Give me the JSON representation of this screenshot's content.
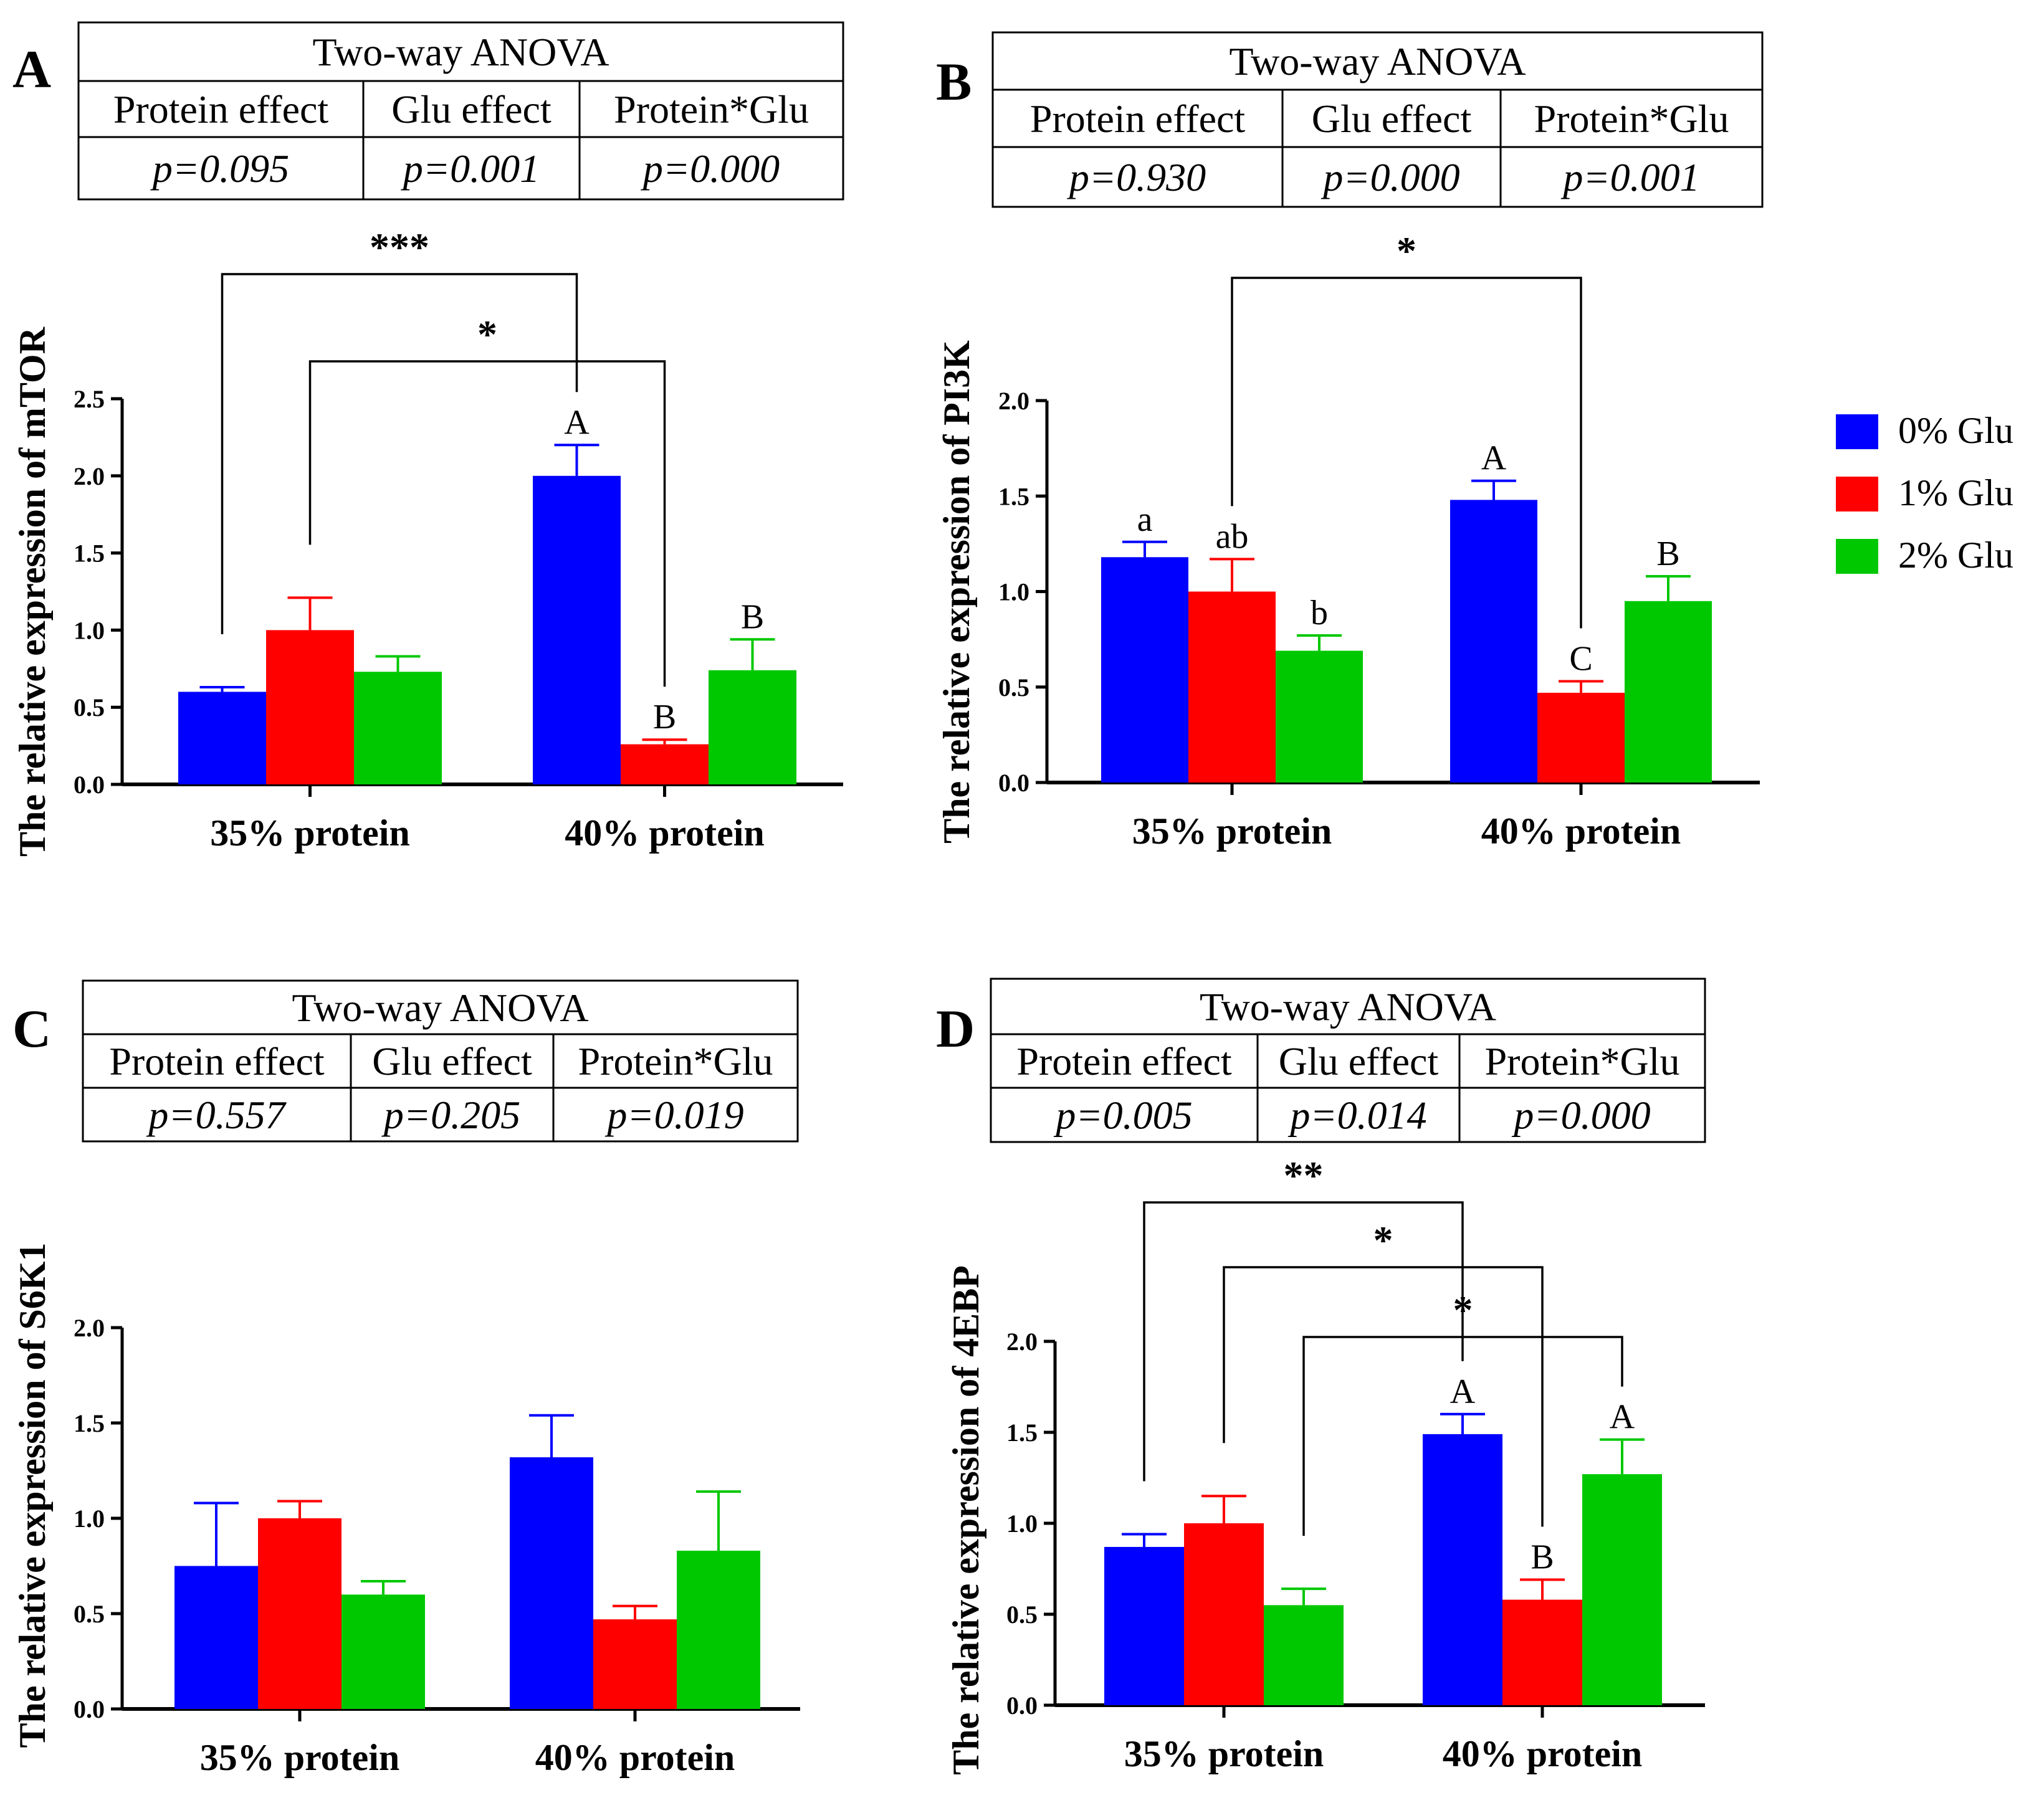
{
  "legend": {
    "entries": [
      "0% Glu",
      "1% Glu",
      "2% Glu"
    ]
  },
  "colors": {
    "series": [
      "#0000FF",
      "#FF0000",
      "#00C800"
    ],
    "axis": "#000000"
  },
  "panels": [
    {
      "letter": "A",
      "anova": {
        "title": "Two-way ANOVA",
        "headers": [
          "Protein effect",
          "Glu effect",
          "Protein*Glu"
        ],
        "values": [
          "p=0.095",
          "p=0.001",
          "p=0.000"
        ]
      },
      "chart_data": {
        "type": "bar",
        "ylabel": "The relative expression of mTOR",
        "categories": [
          "35% protein",
          "40% protein"
        ],
        "ylim": [
          0,
          2.5
        ],
        "yticks": [
          0.0,
          0.5,
          1.0,
          1.5,
          2.0,
          2.5
        ],
        "ytick_labels": [
          "0.0",
          "0.5",
          "1.0",
          "1.5",
          "2.0",
          "2.5"
        ],
        "series": [
          {
            "name": "0% Glu",
            "values": [
              0.6,
              2.0
            ],
            "errors": [
              0.03,
              0.2
            ],
            "labels": [
              "",
              "A"
            ]
          },
          {
            "name": "1% Glu",
            "values": [
              1.0,
              0.26
            ],
            "errors": [
              0.21,
              0.03
            ],
            "labels": [
              "",
              "B"
            ]
          },
          {
            "name": "2% Glu",
            "values": [
              0.73,
              0.74
            ],
            "errors": [
              0.1,
              0.2
            ],
            "labels": [
              "",
              "B"
            ]
          }
        ],
        "brackets": [
          {
            "from": [
              0,
              0
            ],
            "to": [
              1,
              0
            ],
            "label": "***",
            "level": 0
          },
          {
            "from": [
              0,
              1
            ],
            "to": [
              1,
              1
            ],
            "label": "*",
            "level": 1
          }
        ]
      }
    },
    {
      "letter": "B",
      "anova": {
        "title": "Two-way ANOVA",
        "headers": [
          "Protein effect",
          "Glu effect",
          "Protein*Glu"
        ],
        "values": [
          "p=0.930",
          "p=0.000",
          "p=0.001"
        ]
      },
      "chart_data": {
        "type": "bar",
        "ylabel": "The relative expression of PI3K",
        "categories": [
          "35% protein",
          "40% protein"
        ],
        "ylim": [
          0,
          2.0
        ],
        "yticks": [
          0.0,
          0.5,
          1.0,
          1.5,
          2.0
        ],
        "ytick_labels": [
          "0.0",
          "0.5",
          "1.0",
          "1.5",
          "2.0"
        ],
        "series": [
          {
            "name": "0% Glu",
            "values": [
              1.18,
              1.48
            ],
            "errors": [
              0.08,
              0.1
            ],
            "labels": [
              "a",
              "A"
            ]
          },
          {
            "name": "1% Glu",
            "values": [
              1.0,
              0.47
            ],
            "errors": [
              0.17,
              0.06
            ],
            "labels": [
              "ab",
              "C"
            ]
          },
          {
            "name": "2% Glu",
            "values": [
              0.69,
              0.95
            ],
            "errors": [
              0.08,
              0.13
            ],
            "labels": [
              "b",
              "B"
            ]
          }
        ],
        "brackets": [
          {
            "from": [
              0,
              1
            ],
            "to": [
              1,
              1
            ],
            "label": "*",
            "level": 0
          }
        ]
      }
    },
    {
      "letter": "C",
      "anova": {
        "title": "Two-way ANOVA",
        "headers": [
          "Protein effect",
          "Glu effect",
          "Protein*Glu"
        ],
        "values": [
          "p=0.557",
          "p=0.205",
          "p=0.019"
        ]
      },
      "chart_data": {
        "type": "bar",
        "ylabel": "The relative expression of S6K1",
        "categories": [
          "35% protein",
          "40% protein"
        ],
        "ylim": [
          0,
          2.0
        ],
        "yticks": [
          0.0,
          0.5,
          1.0,
          1.5,
          2.0
        ],
        "ytick_labels": [
          "0.0",
          "0.5",
          "1.0",
          "1.5",
          "2.0"
        ],
        "series": [
          {
            "name": "0% Glu",
            "values": [
              0.75,
              1.32
            ],
            "errors": [
              0.33,
              0.22
            ],
            "labels": [
              "",
              ""
            ]
          },
          {
            "name": "1% Glu",
            "values": [
              1.0,
              0.47
            ],
            "errors": [
              0.09,
              0.07
            ],
            "labels": [
              "",
              ""
            ]
          },
          {
            "name": "2% Glu",
            "values": [
              0.6,
              0.83
            ],
            "errors": [
              0.07,
              0.31
            ],
            "labels": [
              "",
              ""
            ]
          }
        ],
        "brackets": []
      }
    },
    {
      "letter": "D",
      "anova": {
        "title": "Two-way ANOVA",
        "headers": [
          "Protein effect",
          "Glu effect",
          "Protein*Glu"
        ],
        "values": [
          "p=0.005",
          "p=0.014",
          "p=0.000"
        ]
      },
      "chart_data": {
        "type": "bar",
        "ylabel": "The relative expression of 4EBP",
        "categories": [
          "35% protein",
          "40% protein"
        ],
        "ylim": [
          0,
          2.0
        ],
        "yticks": [
          0.0,
          0.5,
          1.0,
          1.5,
          2.0
        ],
        "ytick_labels": [
          "0.0",
          "0.5",
          "1.0",
          "1.5",
          "2.0"
        ],
        "series": [
          {
            "name": "0% Glu",
            "values": [
              0.87,
              1.49
            ],
            "errors": [
              0.07,
              0.11
            ],
            "labels": [
              "",
              "A"
            ]
          },
          {
            "name": "1% Glu",
            "values": [
              1.0,
              0.58
            ],
            "errors": [
              0.15,
              0.11
            ],
            "labels": [
              "",
              "B"
            ]
          },
          {
            "name": "2% Glu",
            "values": [
              0.55,
              1.27
            ],
            "errors": [
              0.09,
              0.19
            ],
            "labels": [
              "",
              "A"
            ]
          }
        ],
        "brackets": [
          {
            "from": [
              0,
              0
            ],
            "to": [
              1,
              0
            ],
            "label": "**",
            "level": 0
          },
          {
            "from": [
              0,
              1
            ],
            "to": [
              1,
              1
            ],
            "label": "*",
            "level": 1
          },
          {
            "from": [
              0,
              2
            ],
            "to": [
              1,
              2
            ],
            "label": "*",
            "level": 2
          }
        ]
      }
    }
  ]
}
